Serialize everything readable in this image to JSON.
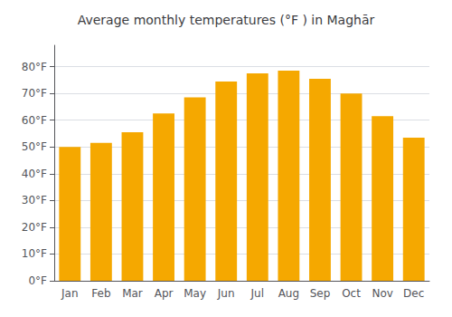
{
  "chart_data": {
    "type": "bar",
    "title": "Average monthly temperatures (°F ) in Maghār",
    "categories": [
      "Jan",
      "Feb",
      "Mar",
      "Apr",
      "May",
      "Jun",
      "Jul",
      "Aug",
      "Sep",
      "Oct",
      "Nov",
      "Dec"
    ],
    "values": [
      50.0,
      51.5,
      55.5,
      62.5,
      68.5,
      74.5,
      77.5,
      78.5,
      75.5,
      70.0,
      61.5,
      53.5
    ],
    "color": "#F5A800",
    "ylim": [
      0,
      88
    ],
    "yticks": [
      {
        "value": 0,
        "label": "0°F"
      },
      {
        "value": 10,
        "label": "10°F"
      },
      {
        "value": 20,
        "label": "20°F"
      },
      {
        "value": 30,
        "label": "30°F"
      },
      {
        "value": 40,
        "label": "40°F"
      },
      {
        "value": 50,
        "label": "50°F"
      },
      {
        "value": 60,
        "label": "60°F"
      },
      {
        "value": 70,
        "label": "70°F"
      },
      {
        "value": 80,
        "label": "80°F"
      }
    ],
    "grid": true
  }
}
